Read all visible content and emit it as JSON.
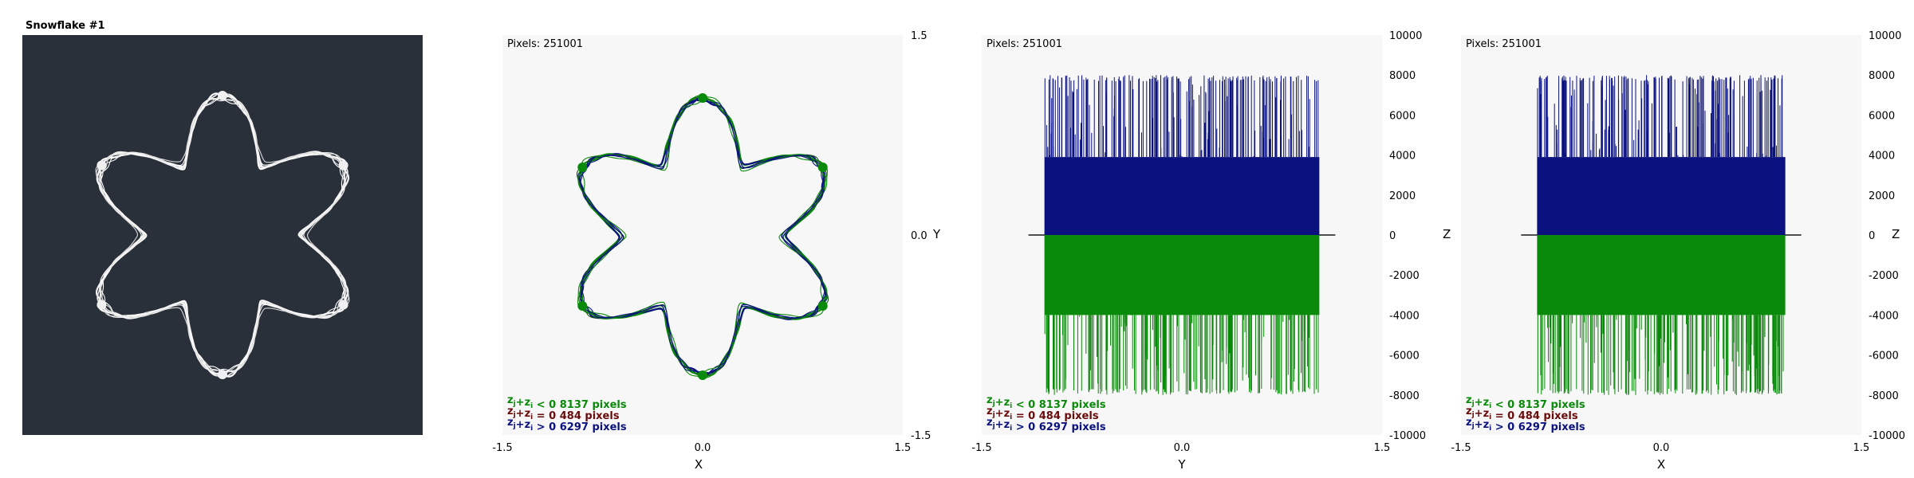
{
  "colors": {
    "dark_bg": "#2a303a",
    "panel_bg": "#f7f7f7",
    "white_curve": "#f0f0f0",
    "green": "#0a8a0a",
    "blue": "#0b1280",
    "maroon": "#6a0a0a",
    "baseline": "#505050"
  },
  "panel1": {
    "title": "Snowflake #1"
  },
  "chart_data": [
    {
      "type": "scatter",
      "title": "Pixels: 251001",
      "xlabel": "X",
      "ylabel": "Y",
      "xlim": [
        -1.5,
        1.5
      ],
      "ylim": [
        -1.5,
        1.5
      ],
      "x_ticks": [
        "-1.5",
        "0.0",
        "1.5"
      ],
      "y_ticks": [
        "1.5",
        "0.0",
        "-1.5"
      ],
      "shape": {
        "arms": 6,
        "outer_radius": 1.0,
        "inner_radius": 0.58
      },
      "legend": [
        {
          "label_base": "z",
          "label_sub": "j",
          "label_plus": "+z",
          "label_sub2": "i",
          "label_rel": " < 0",
          "count": "8137 pixels",
          "color": "green"
        },
        {
          "label_base": "z",
          "label_sub": "j",
          "label_plus": "+z",
          "label_sub2": "i",
          "label_rel": " = 0",
          "count": "484 pixels",
          "color": "maroon"
        },
        {
          "label_base": "z",
          "label_sub": "j",
          "label_plus": "+z",
          "label_sub2": "i",
          "label_rel": " > 0",
          "count": "6297 pixels",
          "color": "blue"
        }
      ]
    },
    {
      "type": "bar",
      "title": "Pixels: 251001",
      "xlabel": "Y",
      "ylabel": "Z",
      "xlim": [
        -1.5,
        1.5
      ],
      "ylim": [
        -10000,
        10000
      ],
      "x_ticks": [
        "-1.5",
        "0.0",
        "1.5"
      ],
      "y_ticks": [
        "10000",
        "8000",
        "6000",
        "4000",
        "2000",
        "0",
        "-2000",
        "-4000",
        "-6000",
        "-8000",
        "-10000"
      ],
      "positive": {
        "band_range": [
          -1.03,
          1.03
        ],
        "band_level": 3900,
        "spike_level": 8000
      },
      "negative": {
        "band_range": [
          -1.03,
          1.03
        ],
        "band_level": -4000,
        "spike_level": -8000
      },
      "legend": [
        {
          "label_base": "z",
          "label_sub": "j",
          "label_plus": "+z",
          "label_sub2": "i",
          "label_rel": " < 0",
          "count": "8137 pixels",
          "color": "green"
        },
        {
          "label_base": "z",
          "label_sub": "j",
          "label_plus": "+z",
          "label_sub2": "i",
          "label_rel": " = 0",
          "count": "484 pixels",
          "color": "maroon"
        },
        {
          "label_base": "z",
          "label_sub": "j",
          "label_plus": "+z",
          "label_sub2": "i",
          "label_rel": " > 0",
          "count": "6297 pixels",
          "color": "blue"
        }
      ]
    },
    {
      "type": "bar",
      "title": "Pixels: 251001",
      "xlabel": "X",
      "ylabel": "Z",
      "xlim": [
        -1.5,
        1.5
      ],
      "ylim": [
        -10000,
        10000
      ],
      "x_ticks": [
        "-1.5",
        "0.0",
        "1.5"
      ],
      "y_ticks": [
        "10000",
        "8000",
        "6000",
        "4000",
        "2000",
        "0",
        "-2000",
        "-4000",
        "-6000",
        "-8000",
        "-10000"
      ],
      "positive": {
        "band_range": [
          -0.93,
          0.93
        ],
        "band_level": 3900,
        "spike_level": 8000
      },
      "negative": {
        "band_range": [
          -0.93,
          0.93
        ],
        "band_level": -4000,
        "spike_level": -8000
      },
      "legend": [
        {
          "label_base": "z",
          "label_sub": "j",
          "label_plus": "+z",
          "label_sub2": "i",
          "label_rel": " < 0",
          "count": "8137 pixels",
          "color": "green"
        },
        {
          "label_base": "z",
          "label_sub": "j",
          "label_plus": "+z",
          "label_sub2": "i",
          "label_rel": " = 0",
          "count": "484 pixels",
          "color": "maroon"
        },
        {
          "label_base": "z",
          "label_sub": "j",
          "label_plus": "+z",
          "label_sub2": "i",
          "label_rel": " > 0",
          "count": "6297 pixels",
          "color": "blue"
        }
      ]
    }
  ]
}
